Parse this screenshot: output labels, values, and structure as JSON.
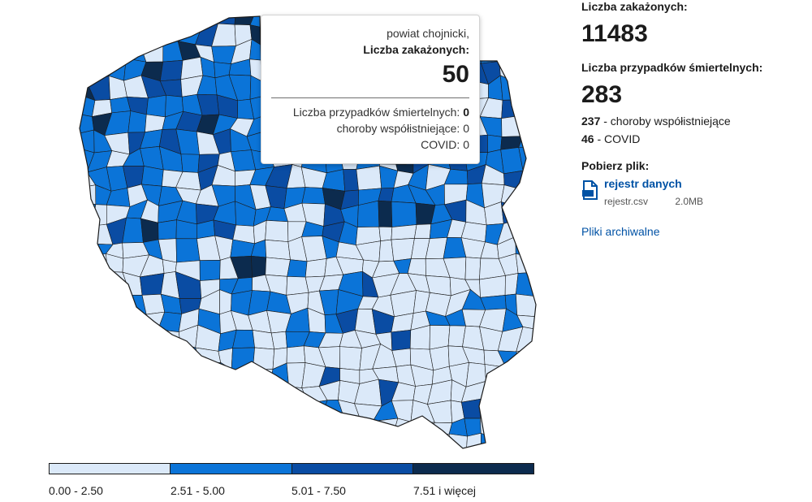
{
  "tooltip": {
    "region": "powiat chojnicki,",
    "infections_label": "Liczba zakażonych:",
    "infections_value": "50",
    "deaths_label": "Liczba przypadków śmiertelnych:",
    "deaths_value": "0",
    "comorbid_label": "choroby współistniejące:",
    "comorbid_value": "0",
    "covid_label": "COVID:",
    "covid_value": "0"
  },
  "legend": {
    "items": [
      {
        "label": "0.00 - 2.50",
        "color": "#dbe9f9"
      },
      {
        "label": "2.51 - 5.00",
        "color": "#0b74d8"
      },
      {
        "label": "5.01 - 7.50",
        "color": "#0a4ca3"
      },
      {
        "label": "7.51 i więcej",
        "color": "#0c2b4e"
      }
    ]
  },
  "summary": {
    "infections_label": "Liczba zakażonych:",
    "infections_value": "11483",
    "deaths_label": "Liczba przypadków śmiertelnych:",
    "deaths_value": "283",
    "comorbid_value": "237",
    "comorbid_text": "- choroby współistniejące",
    "covid_value": "46",
    "covid_text": "- COVID"
  },
  "download": {
    "heading": "Pobierz plik:",
    "link_label": "rejestr danych",
    "file_name": "rejestr.csv",
    "file_size": "2.0MB",
    "archive_label": "Pliki archiwalne"
  },
  "map_colors": {
    "light": "#dbe9f9",
    "medium": "#0b74d8",
    "dark": "#0a4ca3",
    "darkest": "#0c2b4e",
    "border": "#1b1b1b"
  },
  "icons": {
    "file": "file-download-icon"
  }
}
